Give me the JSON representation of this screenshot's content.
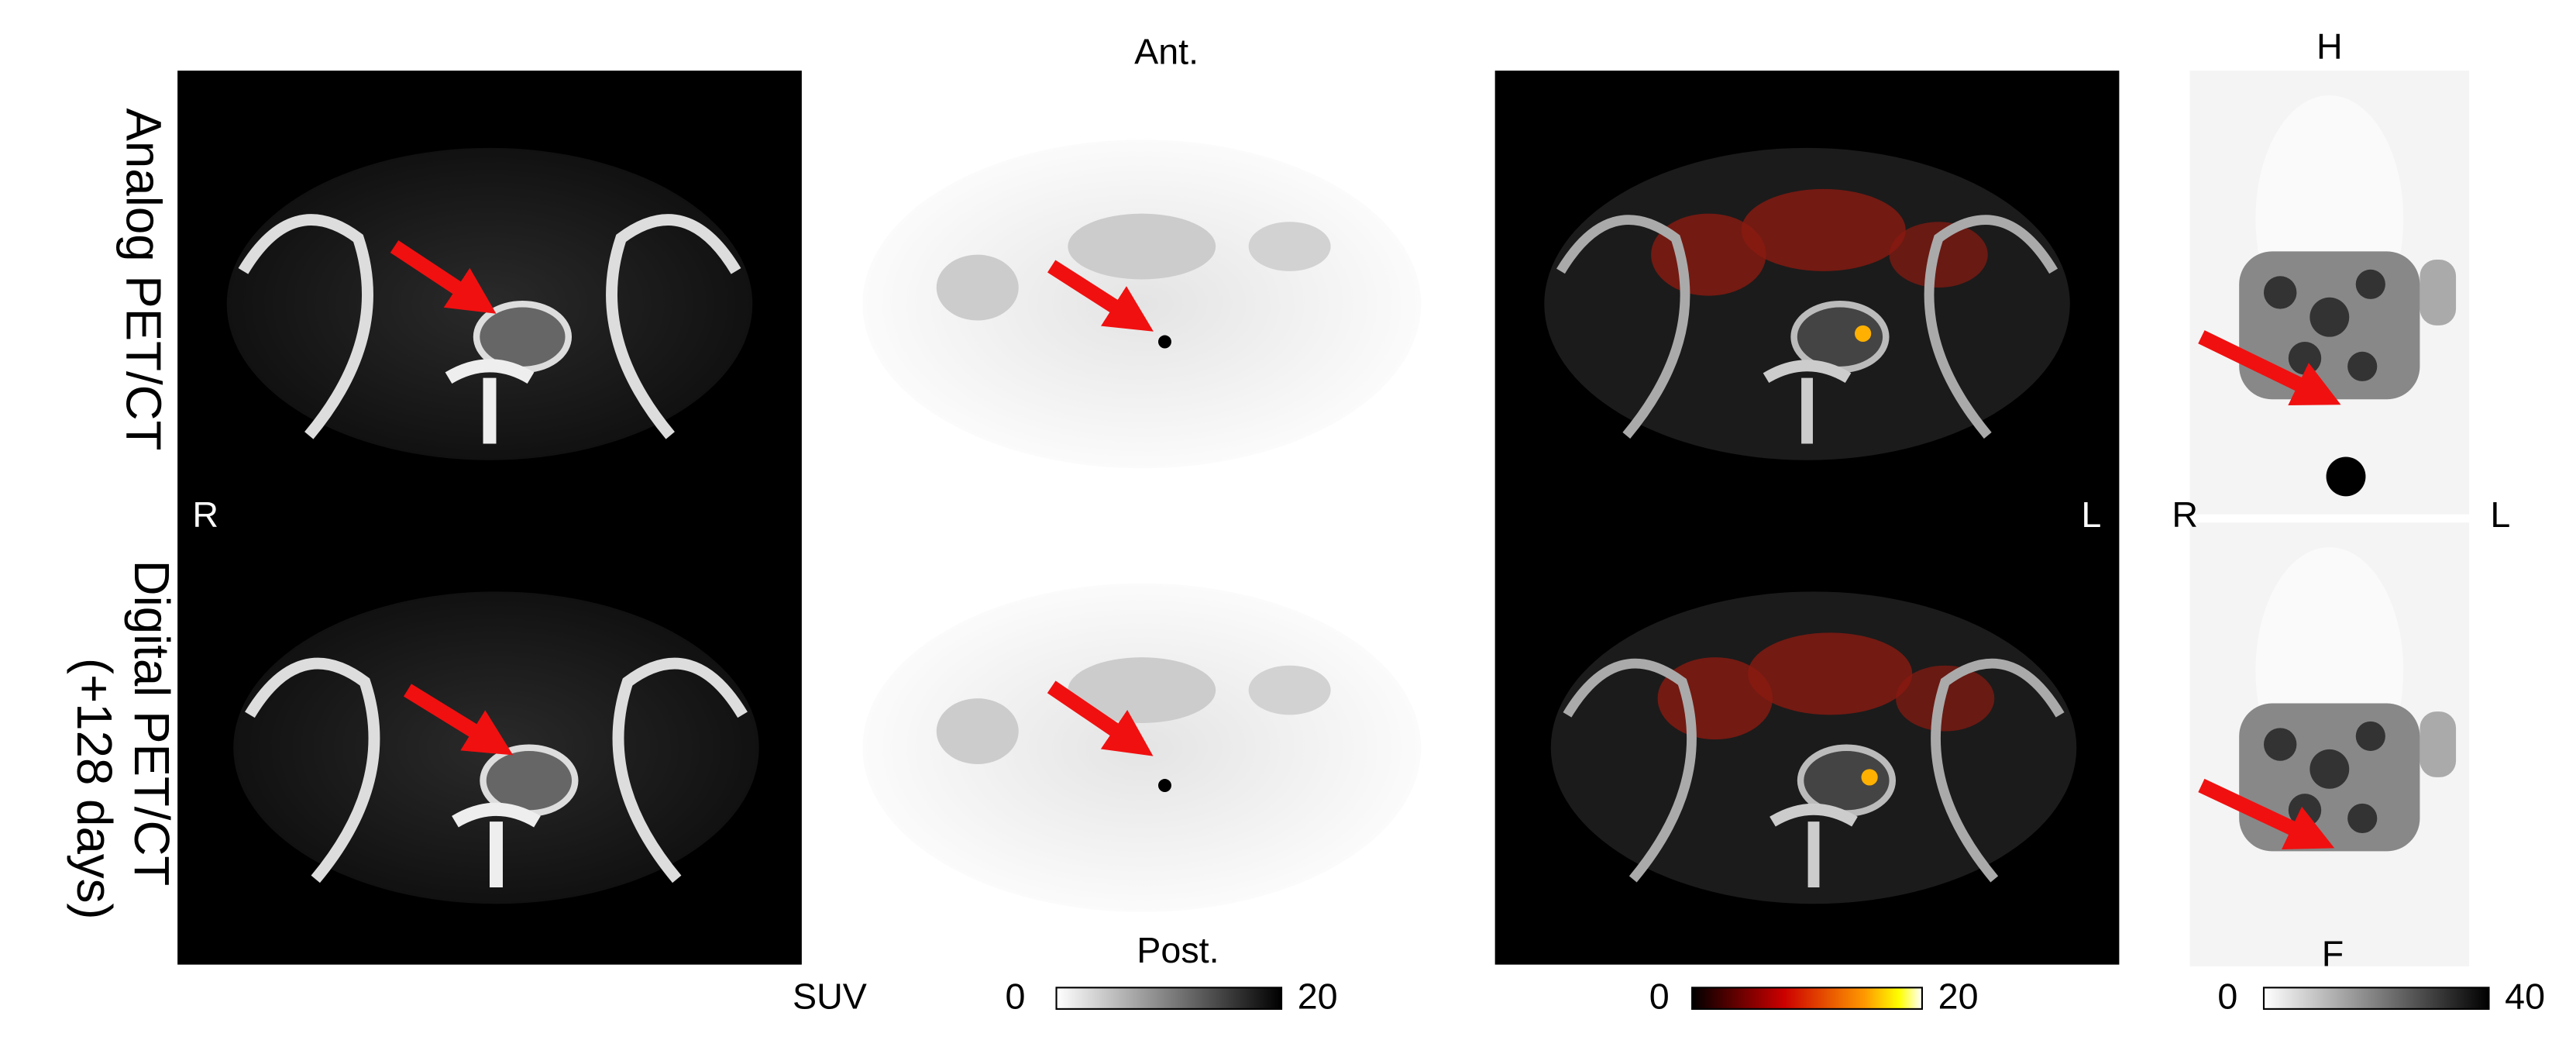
{
  "rows": [
    {
      "label": "Analog PET/CT"
    },
    {
      "label": "Digital PET/CT",
      "note": "(+128 days)"
    }
  ],
  "orientation": {
    "anterior": "Ant.",
    "posterior": "Post.",
    "right_ct": "R",
    "left_fusion": "L",
    "head": "H",
    "right_mip": "R",
    "left_mip": "L",
    "feet": "F"
  },
  "colorbars": {
    "unit": "SUV",
    "pet": {
      "min": 0,
      "max": 20
    },
    "fusion": {
      "min": 0,
      "max": 20
    },
    "mip": {
      "min": 0,
      "max": 40
    }
  }
}
